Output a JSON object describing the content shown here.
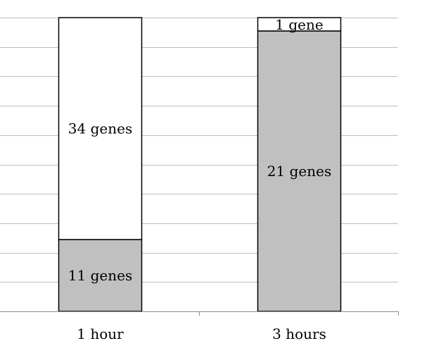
{
  "chart_data": {
    "type": "bar",
    "stacked": true,
    "normalized": true,
    "categories": [
      "1 hour",
      "3 hours"
    ],
    "series": [
      {
        "values": [
          11,
          21
        ],
        "labels": [
          "11 genes",
          "21 genes"
        ],
        "color": "#c0c0c0"
      },
      {
        "values": [
          34,
          1
        ],
        "labels": [
          "34 genes",
          "1 gene"
        ],
        "color": "#ffffff"
      }
    ],
    "ylim": [
      0,
      100
    ],
    "grid": true,
    "gridline_color": "#bdbdbd",
    "bar_outline_color": "#000000",
    "title": "",
    "xlabel": "",
    "ylabel": ""
  }
}
